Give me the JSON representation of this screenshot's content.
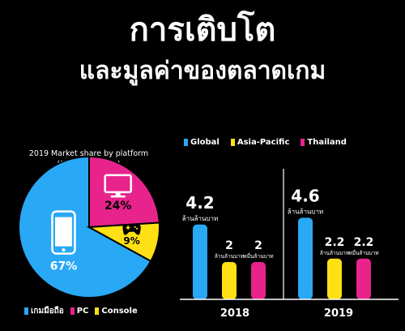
{
  "header": {
    "title_line1": "การเติบโต",
    "title_line2": "และมูลค่าของตลาดเกม"
  },
  "colors": {
    "mobile": "#29A8F5",
    "pc": "#E8238C",
    "console": "#FFE014",
    "global": "#29A8F5",
    "asia_pacific": "#FFE014",
    "thailand": "#E8238C",
    "background": "#000000"
  },
  "chart_data": [
    {
      "type": "pie",
      "title": "2019 Market share by platform",
      "subtitle": "(Southeast Asia)",
      "slices": [
        {
          "label": "เกมมือถือ",
          "value": 67,
          "display": "67%",
          "color": "#29A8F5",
          "icon": "smartphone-icon"
        },
        {
          "label": "PC",
          "value": 24,
          "display": "24%",
          "color": "#E8238C",
          "icon": "desktop-computer-icon"
        },
        {
          "label": "Console",
          "value": 9,
          "display": "9%",
          "color": "#FFE014",
          "icon": "gamepad-icon"
        }
      ],
      "legend_position": "bottom"
    },
    {
      "type": "bar",
      "categories": [
        "2018",
        "2019"
      ],
      "series": [
        {
          "name": "Global",
          "values": [
            4.2,
            4.6
          ],
          "color": "#29A8F5",
          "value_labels": [
            "4.2",
            "4.6"
          ],
          "unit_labels": [
            "ล้านล้านบาท",
            "ล้านล้านบาท"
          ]
        },
        {
          "name": "Asia-Pacific",
          "values": [
            2,
            2.2
          ],
          "color": "#FFE014",
          "value_labels": [
            "2",
            "2.2"
          ],
          "unit_labels": [
            "ล้านล้านบาท",
            "ล้านล้านบาท"
          ]
        },
        {
          "name": "Thailand",
          "values": [
            2,
            2.2
          ],
          "color": "#E8238C",
          "value_labels": [
            "2",
            "2.2"
          ],
          "unit_labels": [
            "หมื่นล้านบาท",
            "หมื่นล้านบาท"
          ]
        }
      ],
      "legend_position": "top",
      "grid": false
    }
  ]
}
